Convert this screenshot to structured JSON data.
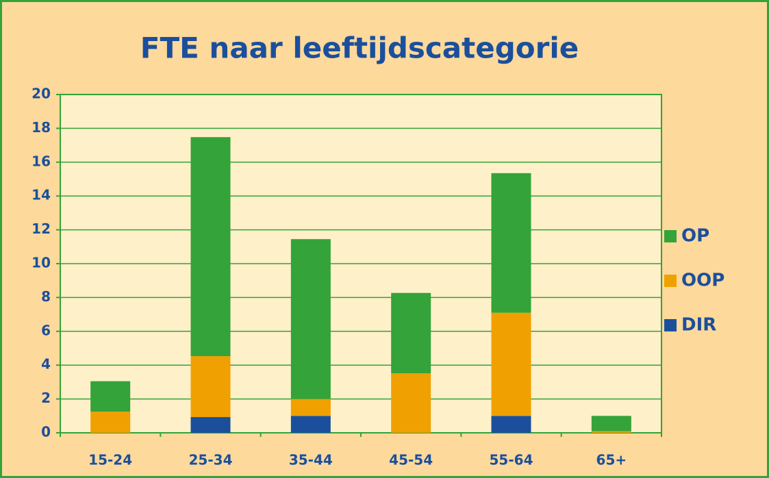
{
  "chart_data": {
    "type": "stacked_bar",
    "title": "FTE naar leeftijdscategorie",
    "categories": [
      "15-24",
      "25-34",
      "35-44",
      "45-54",
      "55-64",
      "65+"
    ],
    "series": [
      {
        "name": "DIR",
        "color": "#1b4f9c",
        "values": [
          0,
          0.93,
          1.0,
          0,
          1.0,
          0
        ]
      },
      {
        "name": "OOP",
        "color": "#f0a000",
        "values": [
          1.25,
          3.6,
          1.0,
          3.52,
          6.1,
          0.1
        ]
      },
      {
        "name": "OP",
        "color": "#33a33a",
        "values": [
          1.8,
          12.95,
          9.45,
          4.75,
          8.25,
          0.9
        ]
      }
    ],
    "ylim": [
      0,
      20
    ],
    "yticks": [
      0,
      2,
      4,
      6,
      8,
      10,
      12,
      14,
      16,
      18,
      20
    ],
    "grid": true,
    "legend": "right"
  }
}
